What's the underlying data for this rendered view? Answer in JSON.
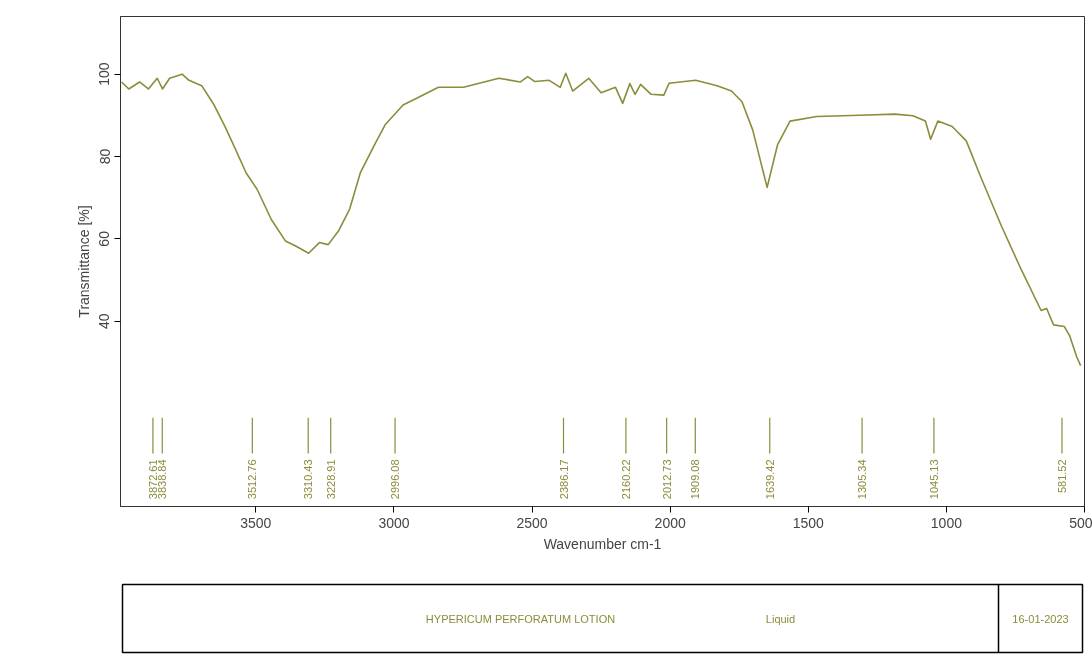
{
  "chart_data": {
    "type": "line",
    "xlabel": "Wavenumber cm-1",
    "ylabel": "Transmittance [%]",
    "xlim": [
      3990,
      500
    ],
    "ylim": [
      -5,
      114
    ],
    "xticks": [
      3500,
      3000,
      2500,
      2000,
      1500,
      1000,
      500
    ],
    "yticks": [
      40,
      60,
      80,
      100
    ],
    "grid": false,
    "series": [
      {
        "color": "#8c8c3c",
        "x": [
          3986,
          3960,
          3921,
          3889,
          3857,
          3838,
          3812,
          3767,
          3742,
          3696,
          3651,
          3612,
          3579,
          3535,
          3496,
          3444,
          3393,
          3354,
          3309,
          3270,
          3238,
          3199,
          3160,
          3122,
          3070,
          3032,
          2967,
          2916,
          2839,
          2748,
          2620,
          2542,
          2516,
          2490,
          2438,
          2398,
          2378,
          2353,
          2295,
          2250,
          2198,
          2172,
          2146,
          2127,
          2107,
          2069,
          2023,
          2004,
          1908,
          1830,
          1778,
          1740,
          1701,
          1649,
          1611,
          1566,
          1469,
          1314,
          1186,
          1121,
          1076,
          1057,
          1031,
          979,
          928,
          876,
          800,
          735,
          657,
          637,
          612,
          573,
          554,
          528,
          514
        ],
        "values": [
          98.1,
          96.4,
          98.1,
          96.4,
          99.0,
          96.4,
          99.0,
          100,
          98.5,
          97.2,
          92.5,
          87.3,
          82.5,
          76.0,
          72.1,
          64.7,
          59.5,
          58.2,
          56.5,
          59.1,
          58.6,
          62.1,
          67.3,
          76.0,
          82.9,
          87.7,
          92.5,
          94.2,
          96.8,
          96.8,
          99.0,
          98.1,
          99.4,
          98.2,
          98.5,
          96.8,
          100.2,
          95.9,
          99.0,
          95.5,
          96.8,
          92.9,
          97.7,
          95.1,
          97.5,
          95.1,
          94.9,
          97.8,
          98.5,
          97.2,
          95.9,
          93.3,
          86.4,
          72.5,
          82.9,
          88.6,
          89.7,
          90.0,
          90.3,
          89.9,
          88.6,
          84.2,
          88.6,
          87.3,
          83.8,
          75.1,
          63.0,
          53.4,
          42.6,
          43.1,
          39.1,
          38.7,
          36.5,
          31.3,
          29.2
        ]
      }
    ],
    "ref_lines": [
      {
        "axis": "x",
        "value": 3872.61,
        "label": "3872.61"
      },
      {
        "axis": "x",
        "value": 3838.84,
        "label": "3838.84"
      },
      {
        "axis": "x",
        "value": 3512.76,
        "label": "3512.76"
      },
      {
        "axis": "x",
        "value": 3310.43,
        "label": "3310.43"
      },
      {
        "axis": "x",
        "value": 3228.91,
        "label": "3228.91"
      },
      {
        "axis": "x",
        "value": 2996.08,
        "label": "2996.08"
      },
      {
        "axis": "x",
        "value": 2386.17,
        "label": "2386.17"
      },
      {
        "axis": "x",
        "value": 2160.22,
        "label": "2160.22"
      },
      {
        "axis": "x",
        "value": 2012.73,
        "label": "2012.73"
      },
      {
        "axis": "x",
        "value": 1909.08,
        "label": "1909.08"
      },
      {
        "axis": "x",
        "value": 1639.42,
        "label": "1639.42"
      },
      {
        "axis": "x",
        "value": 1305.34,
        "label": "1305.34"
      },
      {
        "axis": "x",
        "value": 1045.13,
        "label": "1045.13"
      },
      {
        "axis": "x",
        "value": 581.52,
        "label": "581.52"
      }
    ],
    "annotations": [
      "HYPERICUM PERFORATUM LOTION",
      "Liquid",
      "16-01-2023"
    ]
  }
}
